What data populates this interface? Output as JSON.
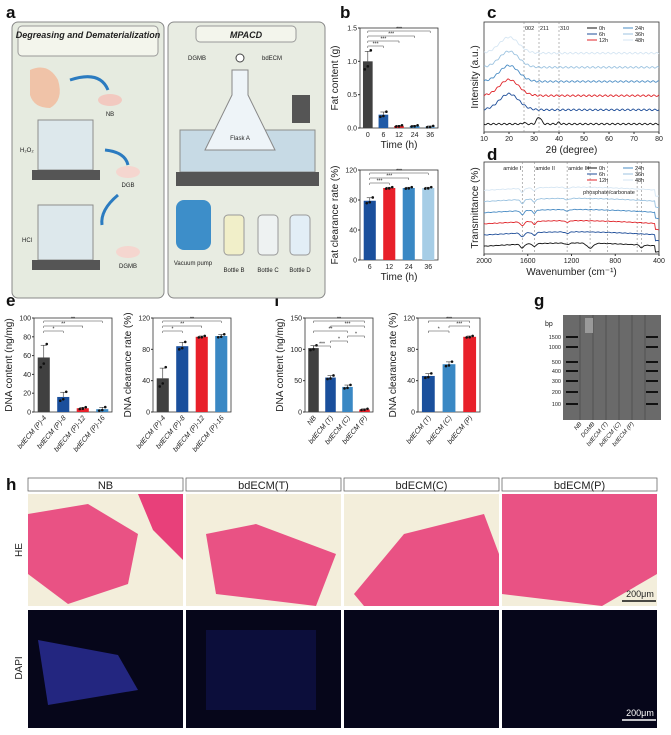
{
  "panel_labels": [
    "a",
    "b",
    "c",
    "d",
    "e",
    "f",
    "g",
    "h"
  ],
  "panel_a": {
    "left_title": "Degreasing and Dematerialization",
    "right_title": "MPACD",
    "labels": {
      "nb": "NB",
      "h2o2": "H₂O₂",
      "dgb": "DGB",
      "hcl": "HCl",
      "dgmb": "DGMB",
      "dgmb_in": "DGMB",
      "bdecm": "bdECM",
      "flask": "Flask A",
      "pump": "Vacuum pump",
      "bottle_b": "Bottle B",
      "bottle_c": "Bottle C",
      "bottle_d": "Bottle D"
    }
  },
  "chart_data": [
    {
      "id": "b1",
      "type": "bar",
      "ylabel": "Fat content (g)",
      "xlabel": "Time (h)",
      "ylim": [
        0,
        1.5
      ],
      "yticks": [
        "0.0",
        "0.5",
        "1.0",
        "1.5"
      ],
      "ytick_values": [
        0,
        0.5,
        1.0,
        1.5
      ],
      "categories": [
        "0",
        "6",
        "12",
        "24",
        "36"
      ],
      "values": [
        1.0,
        0.2,
        0.03,
        0.03,
        0.02
      ],
      "errors": [
        0.15,
        0.04,
        0.01,
        0.01,
        0.01
      ],
      "colors": [
        "#404040",
        "#1f5aa6",
        "#e0262b",
        "#3a88c4",
        "#6aa3cf"
      ],
      "brackets": [
        [
          0,
          1,
          "***"
        ],
        [
          0,
          2,
          "***"
        ],
        [
          0,
          3,
          "***"
        ],
        [
          0,
          4,
          "***"
        ]
      ]
    },
    {
      "id": "b2",
      "type": "bar",
      "ylabel": "Fat clearance rate (%)",
      "xlabel": "Time (h)",
      "ylim": [
        0,
        120
      ],
      "yticks": [
        "0",
        "40",
        "80",
        "120"
      ],
      "ytick_values": [
        0,
        40,
        80,
        120
      ],
      "categories": [
        "6",
        "12",
        "24",
        "36"
      ],
      "values": [
        79,
        96,
        96,
        96
      ],
      "errors": [
        4,
        1,
        1,
        1
      ],
      "colors": [
        "#1a4f9c",
        "#e8202a",
        "#3a88c4",
        "#a6cde6"
      ],
      "brackets": [
        [
          0,
          1,
          "***"
        ],
        [
          0,
          2,
          "***"
        ],
        [
          0,
          3,
          "***"
        ]
      ]
    },
    {
      "id": "c",
      "type": "line",
      "ylabel": "Intensity (a.u.)",
      "xlabel": "2θ (degree)",
      "xlim": [
        10,
        80
      ],
      "xticks": [
        "10",
        "20",
        "30",
        "40",
        "50",
        "60",
        "70",
        "80"
      ],
      "xtick_values": [
        10,
        20,
        30,
        40,
        50,
        60,
        70,
        80
      ],
      "markers": [
        {
          "x": 26,
          "label": "002"
        },
        {
          "x": 32,
          "label": "211"
        },
        {
          "x": 40,
          "label": "310"
        }
      ],
      "series": [
        {
          "name": "0h",
          "color": "#111111"
        },
        {
          "name": "6h",
          "color": "#1f4e99"
        },
        {
          "name": "12h",
          "color": "#e0262b"
        },
        {
          "name": "24h",
          "color": "#4a8cc4"
        },
        {
          "name": "36h",
          "color": "#9cc3e0"
        },
        {
          "name": "48h",
          "color": "#d6e6f3"
        }
      ]
    },
    {
      "id": "d",
      "type": "line",
      "ylabel": "Transmittance (%)",
      "xlabel": "Wavenumber (cm⁻¹)",
      "xlim": [
        2000,
        400
      ],
      "xticks": [
        "2000",
        "1600",
        "1200",
        "800",
        "400"
      ],
      "xtick_values": [
        2000,
        1600,
        1200,
        800,
        400
      ],
      "markers": [
        {
          "x": 1650,
          "label": "amide I"
        },
        {
          "x": 1540,
          "label": "amide II"
        },
        {
          "x": 1240,
          "label": "amide III"
        },
        {
          "x": 1030,
          "label": ""
        },
        {
          "x": 870,
          "label": ""
        },
        {
          "x": 600,
          "label": ""
        },
        {
          "x": 560,
          "label": ""
        }
      ],
      "annotation": "phosphate/carbonate",
      "series": [
        {
          "name": "0h",
          "color": "#111111"
        },
        {
          "name": "6h",
          "color": "#1f4e99"
        },
        {
          "name": "12h",
          "color": "#e0262b"
        },
        {
          "name": "24h",
          "color": "#4a8cc4"
        },
        {
          "name": "36h",
          "color": "#9cc3e0"
        },
        {
          "name": "48h",
          "color": "#d6e6f3"
        }
      ]
    },
    {
      "id": "e1",
      "type": "bar",
      "ylabel": "DNA content (ng/mg)",
      "xlabel": "",
      "ylim": [
        0,
        100
      ],
      "yticks": [
        "0",
        "20",
        "40",
        "60",
        "80",
        "100"
      ],
      "ytick_values": [
        0,
        20,
        40,
        60,
        80,
        100
      ],
      "categories": [
        "bdECM (P)-4",
        "bdECM (P)-8",
        "bdECM (P)-12",
        "bdECM (P)-16"
      ],
      "values": [
        58,
        16,
        4,
        3
      ],
      "errors": [
        13,
        5,
        1,
        2
      ],
      "colors": [
        "#404040",
        "#1a4f9c",
        "#e8202a",
        "#3a88c4"
      ],
      "brackets": [
        [
          0,
          1,
          "*"
        ],
        [
          0,
          2,
          "**"
        ],
        [
          0,
          3,
          "**"
        ]
      ]
    },
    {
      "id": "e2",
      "type": "bar",
      "ylabel": "DNA clearance rate (%)",
      "xlabel": "",
      "ylim": [
        0,
        120
      ],
      "yticks": [
        "0",
        "40",
        "80",
        "120"
      ],
      "ytick_values": [
        0,
        40,
        80,
        120
      ],
      "categories": [
        "bdECM (P)-4",
        "bdECM (P)-8",
        "bdECM (P)-12",
        "bdECM (P)-16"
      ],
      "values": [
        43,
        84,
        96,
        97
      ],
      "errors": [
        13,
        5,
        1,
        2
      ],
      "colors": [
        "#404040",
        "#1a4f9c",
        "#e8202a",
        "#3a88c4"
      ],
      "brackets": [
        [
          0,
          1,
          "*"
        ],
        [
          0,
          2,
          "**"
        ],
        [
          0,
          3,
          "**"
        ]
      ]
    },
    {
      "id": "f1",
      "type": "bar",
      "ylabel": "DNA content (ng/mg)",
      "xlabel": "",
      "ylim": [
        0,
        150
      ],
      "yticks": [
        "0",
        "50",
        "100",
        "150"
      ],
      "ytick_values": [
        0,
        50,
        100,
        150
      ],
      "categories": [
        "NB",
        "bdECM (T)",
        "bdECM (C)",
        "bdECM (P)"
      ],
      "values": [
        102,
        55,
        40,
        4
      ],
      "errors": [
        4,
        3,
        3,
        1
      ],
      "colors": [
        "#404040",
        "#1a4f9c",
        "#3a88c4",
        "#e8202a"
      ],
      "brackets": [
        [
          0,
          1,
          "***"
        ],
        [
          1,
          2,
          "*"
        ],
        [
          2,
          3,
          "*"
        ],
        [
          0,
          2,
          "**"
        ],
        [
          1,
          3,
          "***"
        ],
        [
          0,
          3,
          "**"
        ]
      ]
    },
    {
      "id": "f2",
      "type": "bar",
      "ylabel": "DNA clearance rate (%)",
      "xlabel": "",
      "ylim": [
        0,
        120
      ],
      "yticks": [
        "0",
        "40",
        "80",
        "120"
      ],
      "ytick_values": [
        0,
        40,
        80,
        120
      ],
      "categories": [
        "bdECM (T)",
        "bdECM (C)",
        "bdECM (P)"
      ],
      "values": [
        46,
        61,
        96
      ],
      "errors": [
        3,
        3,
        1
      ],
      "colors": [
        "#1a4f9c",
        "#3a88c4",
        "#e8202a"
      ],
      "brackets": [
        [
          0,
          1,
          "*"
        ],
        [
          1,
          2,
          "***"
        ],
        [
          0,
          2,
          "***"
        ]
      ]
    }
  ],
  "panel_g": {
    "unit": "bp",
    "bp_labels": [
      "1500",
      "1000",
      "500",
      "400",
      "300",
      "200",
      "100"
    ],
    "lanes": [
      "NB",
      "DGMB",
      "bdECM (T)",
      "bdECM (C)",
      "bdECM (P)"
    ]
  },
  "panel_h": {
    "columns": [
      "NB",
      "bdECM(T)",
      "bdECM(C)",
      "bdECM(P)"
    ],
    "rows": [
      "HE",
      "DAPI"
    ],
    "scale_bar": "200μm"
  }
}
